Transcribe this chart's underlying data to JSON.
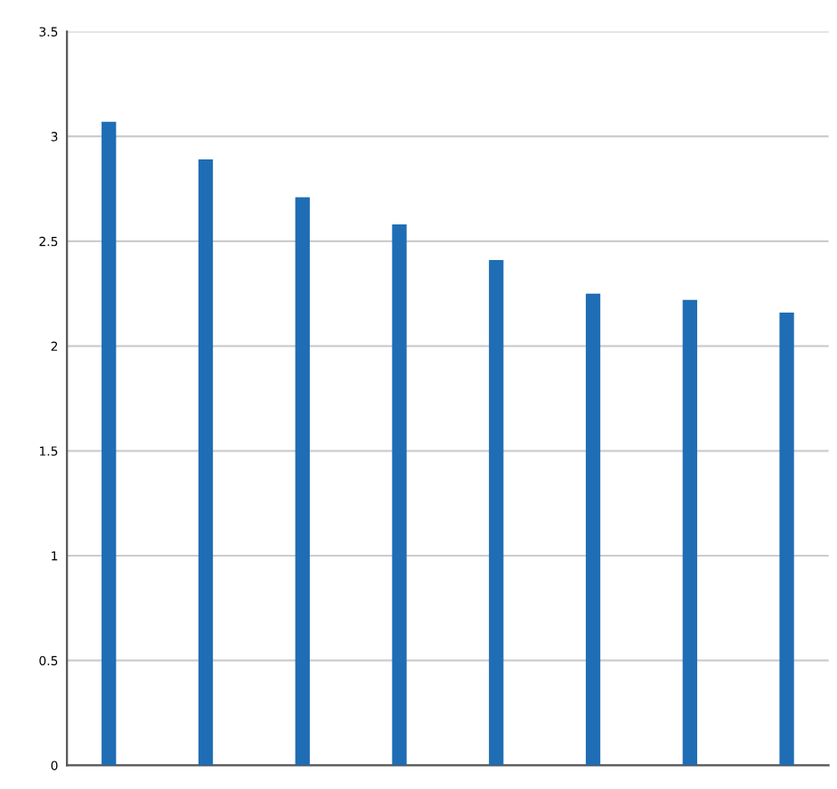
{
  "chart_data": {
    "type": "bar",
    "categories": [
      null,
      null,
      null,
      null,
      null,
      null,
      null,
      null
    ],
    "values": [
      3.07,
      2.89,
      2.71,
      2.58,
      2.41,
      2.25,
      2.22,
      2.16
    ],
    "color": "#1f6db4",
    "ylim": [
      0,
      3.5
    ],
    "yticks": [
      0,
      0.5,
      1,
      1.5,
      2,
      2.5,
      3,
      3.5
    ],
    "grid": "y"
  }
}
